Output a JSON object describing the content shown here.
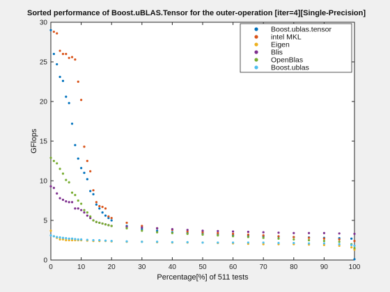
{
  "chart_data": {
    "type": "scatter",
    "title": "Sorted performance of Boost.uBLAS.Tensor for the outer-operation [iter=4][Single-Precision]",
    "xlabel": "Percentage[%] of 511 tests",
    "ylabel": "GFlops",
    "xlim": [
      0,
      100
    ],
    "ylim": [
      0,
      30
    ],
    "xticks": [
      "0",
      "10",
      "20",
      "30",
      "40",
      "50",
      "60",
      "70",
      "80",
      "90",
      "100"
    ],
    "yticks": [
      "0",
      "5",
      "10",
      "15",
      "20",
      "25",
      "30"
    ],
    "grid": false,
    "legend_position": "top-right",
    "series": [
      {
        "name": "Boost.ublas.tensor",
        "color": "#0072bd",
        "x": [
          0,
          1,
          2,
          3,
          4,
          5,
          6,
          7,
          8,
          9,
          10,
          11,
          12,
          13,
          14,
          15,
          16,
          17,
          18,
          19,
          20,
          25,
          30,
          35,
          40,
          45,
          50,
          55,
          60,
          65,
          70,
          75,
          80,
          85,
          90,
          95,
          99,
          100
        ],
        "y": [
          29.0,
          26.0,
          24.7,
          23.1,
          22.6,
          20.6,
          19.8,
          17.2,
          14.5,
          12.8,
          11.6,
          11.0,
          10.2,
          8.7,
          8.3,
          7.0,
          6.5,
          6.0,
          5.6,
          5.3,
          5.0,
          4.3,
          3.9,
          3.7,
          3.5,
          3.4,
          3.3,
          3.2,
          3.1,
          3.05,
          3.0,
          2.95,
          2.9,
          2.85,
          2.8,
          2.75,
          2.7,
          0.1
        ]
      },
      {
        "name": "intel MKL",
        "color": "#d95319",
        "x": [
          1,
          2,
          3,
          4,
          5,
          6,
          7,
          8,
          9,
          10,
          11,
          12,
          13,
          14,
          15,
          16,
          17,
          18,
          19,
          20,
          25,
          30,
          35,
          40,
          45,
          50,
          55,
          60,
          65,
          70,
          75,
          80,
          85,
          90,
          95,
          100
        ],
        "y": [
          28.8,
          28.6,
          26.4,
          26.0,
          26.0,
          25.5,
          25.6,
          25.3,
          22.5,
          20.2,
          14.3,
          12.5,
          11.2,
          8.8,
          7.3,
          6.8,
          6.7,
          6.5,
          5.5,
          5.3,
          4.7,
          4.3,
          4.0,
          3.8,
          3.6,
          3.5,
          3.4,
          3.3,
          3.2,
          3.1,
          3.0,
          2.9,
          2.8,
          2.7,
          2.6,
          2.4
        ]
      },
      {
        "name": "Eigen",
        "color": "#edb120",
        "x": [
          0,
          1,
          2,
          3,
          4,
          5,
          6,
          7,
          8,
          9,
          10,
          12,
          14,
          16,
          18,
          20,
          25,
          30,
          35,
          40,
          45,
          50,
          55,
          60,
          65,
          70,
          75,
          80,
          85,
          90,
          95,
          99,
          100
        ],
        "y": [
          3.7,
          3.0,
          2.8,
          2.6,
          2.6,
          2.5,
          2.5,
          2.5,
          2.5,
          2.5,
          2.5,
          2.45,
          2.4,
          2.4,
          2.4,
          2.35,
          2.3,
          2.3,
          2.25,
          2.2,
          2.2,
          2.2,
          2.15,
          2.1,
          2.05,
          2.0,
          2.0,
          2.0,
          1.95,
          1.9,
          1.8,
          1.6,
          1.3
        ]
      },
      {
        "name": "Blis",
        "color": "#7e2f8e",
        "x": [
          0,
          1,
          2,
          3,
          4,
          5,
          6,
          7,
          8,
          9,
          10,
          11,
          12,
          13,
          14,
          15,
          16,
          17,
          18,
          19,
          20,
          25,
          30,
          35,
          40,
          45,
          50,
          55,
          60,
          65,
          70,
          75,
          80,
          85,
          90,
          95,
          100
        ],
        "y": [
          9.3,
          9.1,
          8.4,
          7.8,
          7.6,
          7.4,
          7.3,
          7.3,
          6.5,
          6.5,
          6.3,
          6.0,
          5.6,
          5.3,
          5.0,
          4.8,
          4.7,
          4.6,
          4.5,
          4.4,
          4.3,
          4.2,
          4.1,
          4.0,
          3.9,
          3.8,
          3.7,
          3.65,
          3.6,
          3.55,
          3.5,
          3.45,
          3.4,
          3.4,
          3.4,
          3.35,
          3.3
        ]
      },
      {
        "name": "OpenBlas",
        "color": "#77ac30",
        "x": [
          0,
          1,
          2,
          3,
          4,
          5,
          6,
          7,
          8,
          9,
          10,
          11,
          12,
          13,
          14,
          15,
          16,
          17,
          18,
          19,
          20,
          25,
          30,
          35,
          40,
          45,
          50,
          55,
          60,
          65,
          70,
          75,
          80,
          85,
          90,
          95,
          99,
          100
        ],
        "y": [
          12.9,
          12.5,
          12.2,
          11.5,
          10.9,
          10.1,
          9.8,
          8.5,
          8.2,
          7.5,
          7.1,
          6.3,
          6.0,
          5.5,
          5.0,
          4.8,
          4.7,
          4.6,
          4.5,
          4.4,
          4.3,
          4.0,
          3.7,
          3.5,
          3.4,
          3.3,
          3.2,
          3.1,
          3.0,
          2.9,
          2.8,
          2.7,
          2.6,
          2.5,
          2.4,
          2.3,
          2.0,
          1.5
        ]
      },
      {
        "name": "Boost.ublas",
        "color": "#4dbeee",
        "x": [
          0,
          1,
          2,
          3,
          4,
          5,
          6,
          7,
          8,
          9,
          10,
          12,
          14,
          16,
          18,
          20,
          25,
          30,
          35,
          40,
          45,
          50,
          55,
          60,
          65,
          70,
          75,
          80,
          85,
          90,
          95,
          99,
          100
        ],
        "y": [
          3.1,
          3.0,
          2.9,
          2.85,
          2.8,
          2.75,
          2.7,
          2.7,
          2.65,
          2.6,
          2.6,
          2.55,
          2.5,
          2.5,
          2.45,
          2.4,
          2.35,
          2.3,
          2.3,
          2.25,
          2.25,
          2.2,
          2.2,
          2.2,
          2.2,
          2.2,
          2.15,
          2.15,
          2.1,
          2.1,
          2.0,
          1.9,
          1.8
        ]
      }
    ]
  }
}
